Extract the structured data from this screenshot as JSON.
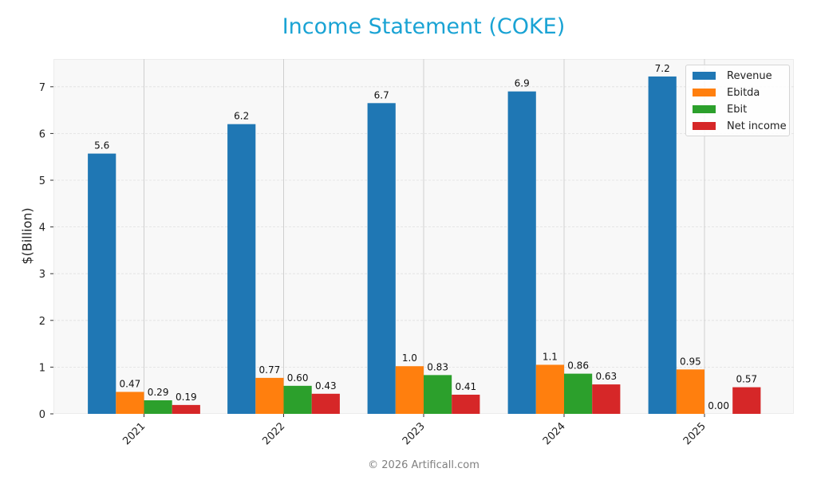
{
  "chart_data": {
    "type": "bar",
    "title": "Income Statement (COKE)",
    "xlabel": "",
    "ylabel": "$(Billion)",
    "ylim": [
      0,
      7.6
    ],
    "yticks": [
      0,
      1,
      2,
      3,
      4,
      5,
      6,
      7
    ],
    "categories": [
      "2021",
      "2022",
      "2023",
      "2024",
      "2025"
    ],
    "series": [
      {
        "name": "Revenue",
        "color": "#1f77b4",
        "values": [
          5.57,
          6.2,
          6.65,
          6.9,
          7.22
        ],
        "labels": [
          "5.6",
          "6.2",
          "6.7",
          "6.9",
          "7.2"
        ]
      },
      {
        "name": "Ebitda",
        "color": "#ff7f0e",
        "values": [
          0.47,
          0.77,
          1.02,
          1.05,
          0.95
        ],
        "labels": [
          "0.47",
          "0.77",
          "1.0",
          "1.1",
          "0.95"
        ]
      },
      {
        "name": "Ebit",
        "color": "#2ca02c",
        "values": [
          0.29,
          0.6,
          0.83,
          0.86,
          0.0
        ],
        "labels": [
          "0.29",
          "0.60",
          "0.83",
          "0.86",
          "0.00"
        ]
      },
      {
        "name": "Net income",
        "color": "#d62728",
        "values": [
          0.19,
          0.43,
          0.41,
          0.63,
          0.57
        ],
        "labels": [
          "0.19",
          "0.43",
          "0.41",
          "0.63",
          "0.57"
        ]
      }
    ],
    "grid": true,
    "legend_position": "upper right"
  },
  "footer": "© 2026 Artificall.com"
}
